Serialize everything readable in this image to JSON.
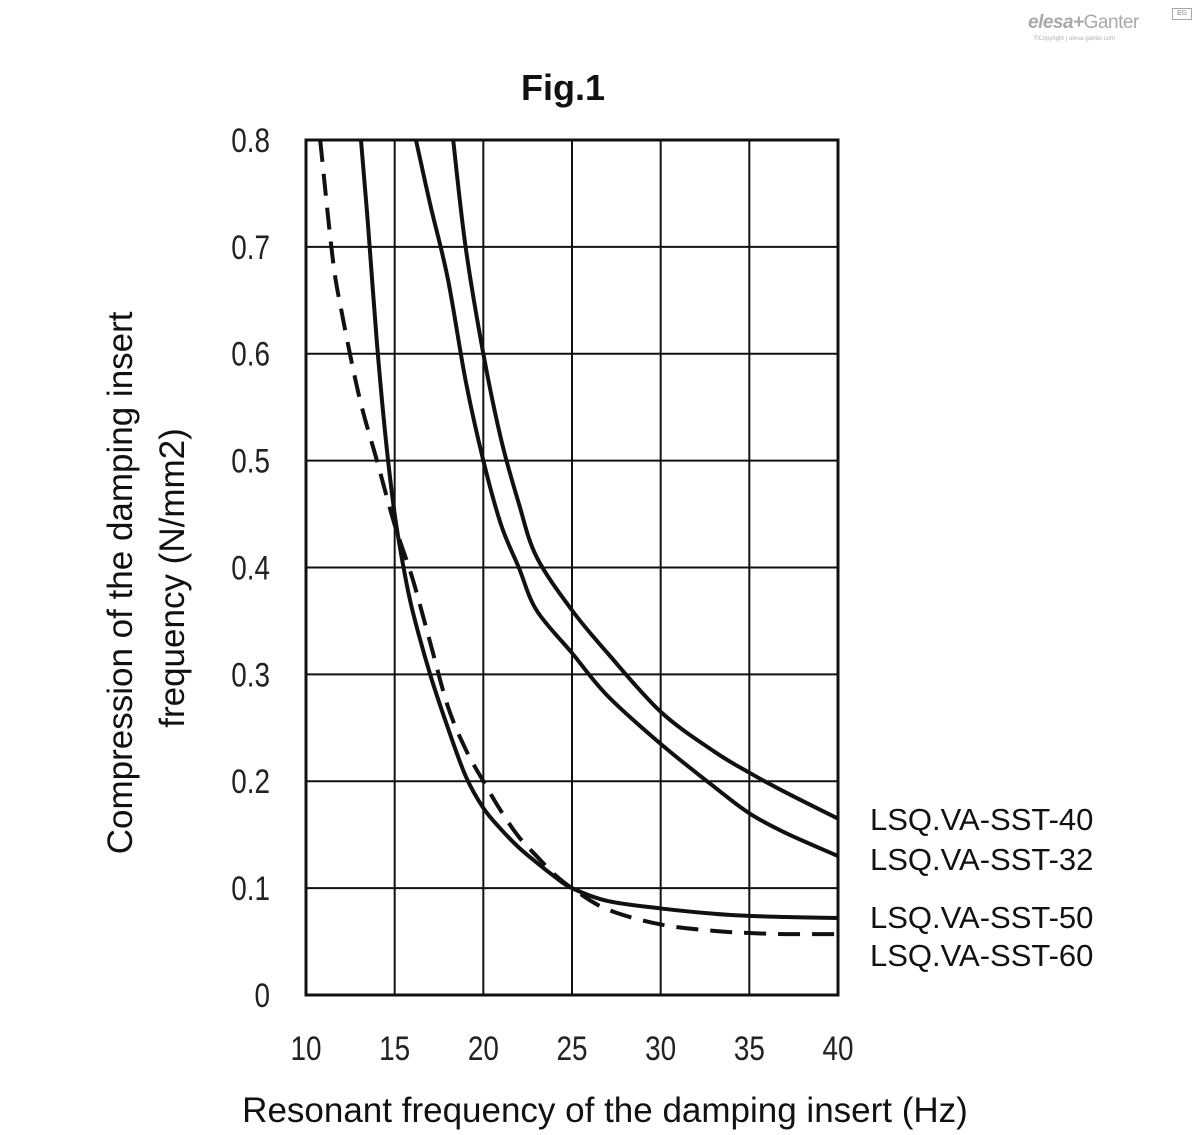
{
  "logo": {
    "brand_left": "elesa",
    "brand_right": "Ganter",
    "badge": "EG",
    "copyright": "©Copyright | elesa-ganter.com"
  },
  "chart_data": {
    "type": "line",
    "title": "Fig.1",
    "xlabel": "Resonant frequency of the damping insert (Hz)",
    "ylabel": [
      "Compression of the damping insert",
      "frequency (N/mm2)"
    ],
    "xlim": [
      10,
      40
    ],
    "ylim": [
      0,
      0.8
    ],
    "xticks": [
      10,
      15,
      20,
      25,
      30,
      35,
      40
    ],
    "yticks": [
      0,
      0.1,
      0.2,
      0.3,
      0.4,
      0.5,
      0.6,
      0.7,
      0.8
    ],
    "ytick_labels": [
      "0",
      "0.1",
      "0.2",
      "0.3",
      "0.4",
      "0.5",
      "0.6",
      "0.7",
      "0.8"
    ],
    "grid": true,
    "legend": "right, at curve ends",
    "series": [
      {
        "name": "LSQ.VA-SST-40",
        "style": "solid",
        "x": [
          18.3,
          19,
          20,
          21,
          22,
          23,
          25,
          27,
          30,
          33,
          35,
          37,
          40
        ],
        "y": [
          0.8,
          0.7,
          0.6,
          0.52,
          0.46,
          0.41,
          0.36,
          0.32,
          0.265,
          0.228,
          0.208,
          0.19,
          0.165
        ]
      },
      {
        "name": "LSQ.VA-SST-32",
        "style": "solid",
        "x": [
          16.2,
          17,
          18,
          19,
          20,
          21,
          22,
          23,
          25,
          27,
          30,
          33,
          35,
          37,
          40
        ],
        "y": [
          0.8,
          0.74,
          0.67,
          0.575,
          0.5,
          0.44,
          0.4,
          0.36,
          0.32,
          0.28,
          0.235,
          0.195,
          0.17,
          0.152,
          0.13
        ]
      },
      {
        "name": "LSQ.VA-SST-50",
        "style": "solid",
        "x": [
          13.1,
          13.5,
          14,
          14.5,
          15,
          15.5,
          16,
          17,
          18,
          19,
          20,
          21,
          22,
          23,
          24,
          25,
          27,
          30,
          33,
          35,
          37,
          40
        ],
        "y": [
          0.8,
          0.72,
          0.61,
          0.52,
          0.45,
          0.4,
          0.36,
          0.3,
          0.25,
          0.205,
          0.175,
          0.155,
          0.138,
          0.124,
          0.111,
          0.1,
          0.088,
          0.081,
          0.076,
          0.074,
          0.073,
          0.072
        ]
      },
      {
        "name": "LSQ.VA-SST-60",
        "style": "dashed",
        "x": [
          10.8,
          11.5,
          12,
          13,
          14,
          15,
          16,
          17,
          18,
          19,
          20,
          21,
          22,
          23,
          24,
          25,
          27,
          30,
          33,
          35,
          37,
          40
        ],
        "y": [
          0.8,
          0.69,
          0.64,
          0.56,
          0.5,
          0.44,
          0.39,
          0.33,
          0.27,
          0.23,
          0.2,
          0.172,
          0.148,
          0.13,
          0.113,
          0.1,
          0.08,
          0.066,
          0.06,
          0.058,
          0.057,
          0.057
        ]
      }
    ]
  }
}
